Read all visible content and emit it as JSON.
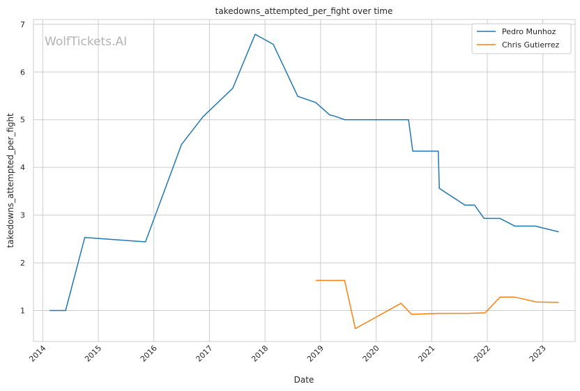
{
  "chart_data": {
    "type": "line",
    "title": "takedowns_attempted_per_fight over time",
    "xlabel": "Date",
    "ylabel": "takedowns_attempted_per_fight",
    "watermark": "WolfTickets.AI",
    "x_ticks": [
      "2014",
      "2015",
      "2016",
      "2017",
      "2018",
      "2019",
      "2020",
      "2021",
      "2022",
      "2023"
    ],
    "y_ticks": [
      "1",
      "2",
      "3",
      "4",
      "5",
      "6",
      "7"
    ],
    "xlim": [
      "2013-11-01",
      "2023-08-01"
    ],
    "ylim": [
      0.35,
      7.1
    ],
    "grid": true,
    "legend_position": "top-right",
    "series": [
      {
        "name": "Pedro Munhoz",
        "color": "#1f77b4",
        "points": [
          [
            "2014-02-15",
            1.0
          ],
          [
            "2014-05-31",
            1.0
          ],
          [
            "2014-10-04",
            2.53
          ],
          [
            "2015-11-07",
            2.44
          ],
          [
            "2016-07-01",
            4.48
          ],
          [
            "2016-11-19",
            5.06
          ],
          [
            "2017-06-03",
            5.66
          ],
          [
            "2017-10-28",
            6.79
          ],
          [
            "2018-02-24",
            6.58
          ],
          [
            "2018-08-04",
            5.49
          ],
          [
            "2018-11-30",
            5.36
          ],
          [
            "2019-03-02",
            5.1
          ],
          [
            "2019-03-30",
            5.08
          ],
          [
            "2019-06-08",
            5.0
          ],
          [
            "2020-08-01",
            5.0
          ],
          [
            "2020-08-29",
            4.34
          ],
          [
            "2021-02-13",
            4.34
          ],
          [
            "2021-02-20",
            3.56
          ],
          [
            "2021-08-07",
            3.21
          ],
          [
            "2021-10-09",
            3.21
          ],
          [
            "2021-12-11",
            2.93
          ],
          [
            "2022-03-26",
            2.93
          ],
          [
            "2022-07-02",
            2.77
          ],
          [
            "2022-11-12",
            2.77
          ],
          [
            "2023-04-15",
            2.65
          ]
        ]
      },
      {
        "name": "Chris Gutierrez",
        "color": "#ff7f0e",
        "points": [
          [
            "2018-12-01",
            1.63
          ],
          [
            "2019-06-08",
            1.63
          ],
          [
            "2019-08-17",
            0.62
          ],
          [
            "2020-06-13",
            1.15
          ],
          [
            "2020-08-22",
            0.92
          ],
          [
            "2021-02-13",
            0.94
          ],
          [
            "2021-08-21",
            0.94
          ],
          [
            "2021-12-18",
            0.95
          ],
          [
            "2022-03-26",
            1.28
          ],
          [
            "2022-07-02",
            1.28
          ],
          [
            "2022-11-19",
            1.18
          ],
          [
            "2023-04-15",
            1.17
          ]
        ]
      }
    ]
  }
}
